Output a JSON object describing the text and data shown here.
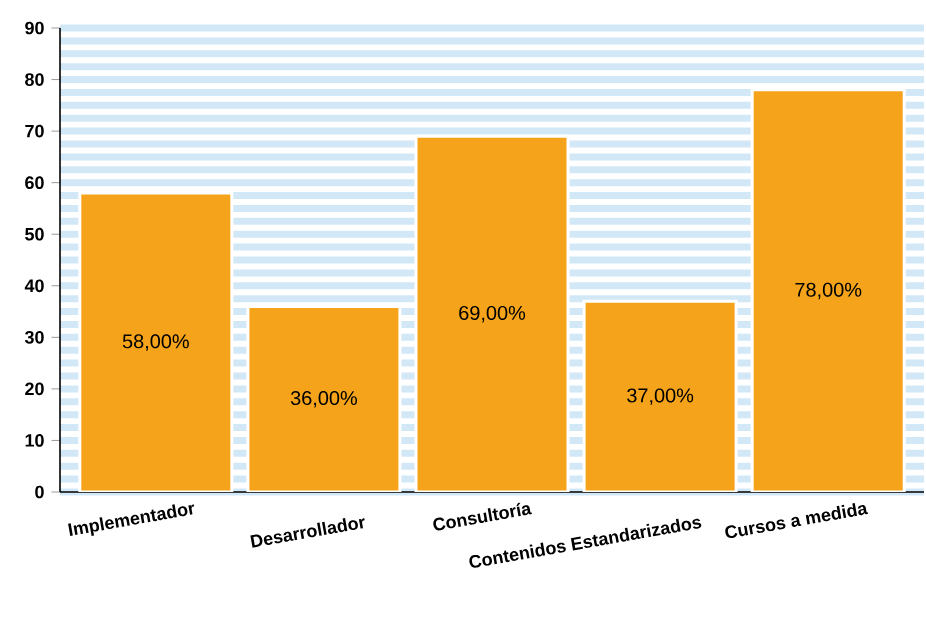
{
  "chart_data": {
    "type": "bar",
    "categories": [
      "Implementador",
      "Desarrollador",
      "Consultoría",
      "Contenidos Estandarizados",
      "Cursos a medida"
    ],
    "values": [
      58,
      36,
      69,
      37,
      78
    ],
    "value_labels": [
      "58,00%",
      "36,00%",
      "69,00%",
      "37,00%",
      "78,00%"
    ],
    "color": "#f5a31a",
    "ylim": [
      0,
      90
    ],
    "yticks": [
      0,
      10,
      20,
      30,
      40,
      50,
      60,
      70,
      80,
      90
    ],
    "grid": "y"
  }
}
